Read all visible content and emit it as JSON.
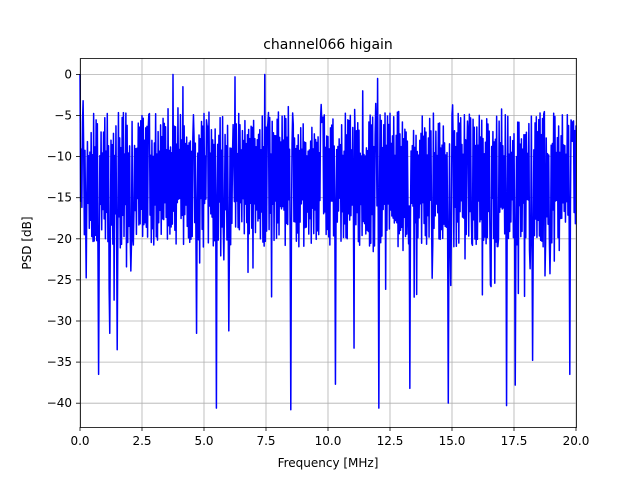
{
  "chart_data": {
    "type": "line",
    "title": "channel066 higain",
    "xlabel": "Frequency [MHz]",
    "ylabel": "PSD [dB]",
    "xlim": [
      0,
      20
    ],
    "ylim": [
      -42.9,
      2
    ],
    "grid": true,
    "x_ticks": [
      0,
      2.5,
      5,
      7.5,
      10,
      12.5,
      15,
      17.5,
      20
    ],
    "x_tick_labels": [
      "0.0",
      "2.5",
      "5.0",
      "7.5",
      "10.0",
      "12.5",
      "15.0",
      "17.5",
      "20.0"
    ],
    "y_ticks": [
      0,
      -5,
      -10,
      -15,
      -20,
      -25,
      -30,
      -35,
      -40
    ],
    "y_tick_labels": [
      "0",
      "−5",
      "−10",
      "−15",
      "−20",
      "−25",
      "−30",
      "−35",
      "−40"
    ],
    "series": [
      {
        "color": "#0000ff",
        "x_range": [
          0,
          20
        ],
        "n_points": 800,
        "typical_range": [
          -18,
          -7
        ],
        "max": 0.0,
        "min": -40.8,
        "peaks": [
          [
            0.0,
            0.0
          ],
          [
            0.12,
            -3.2
          ],
          [
            3.75,
            0.0
          ],
          [
            4.15,
            -1.5
          ],
          [
            6.25,
            -0.3
          ],
          [
            7.45,
            0.0
          ],
          [
            8.5,
            -1.8
          ],
          [
            11.4,
            -2.0
          ],
          [
            12.0,
            -0.5
          ],
          [
            17.0,
            -4.2
          ],
          [
            20.0,
            -6.2
          ]
        ],
        "dips": [
          [
            0.75,
            -36.5
          ],
          [
            1.2,
            -31.5
          ],
          [
            1.5,
            -33.5
          ],
          [
            4.7,
            -31.5
          ],
          [
            5.5,
            -40.6
          ],
          [
            6.0,
            -31.2
          ],
          [
            8.5,
            -40.8
          ],
          [
            10.3,
            -37.7
          ],
          [
            11.05,
            -33.3
          ],
          [
            12.05,
            -40.6
          ],
          [
            13.3,
            -38.2
          ],
          [
            14.85,
            -40.0
          ],
          [
            17.2,
            -40.3
          ],
          [
            17.55,
            -37.8
          ],
          [
            18.25,
            -34.8
          ],
          [
            19.75,
            -36.5
          ]
        ]
      }
    ]
  }
}
